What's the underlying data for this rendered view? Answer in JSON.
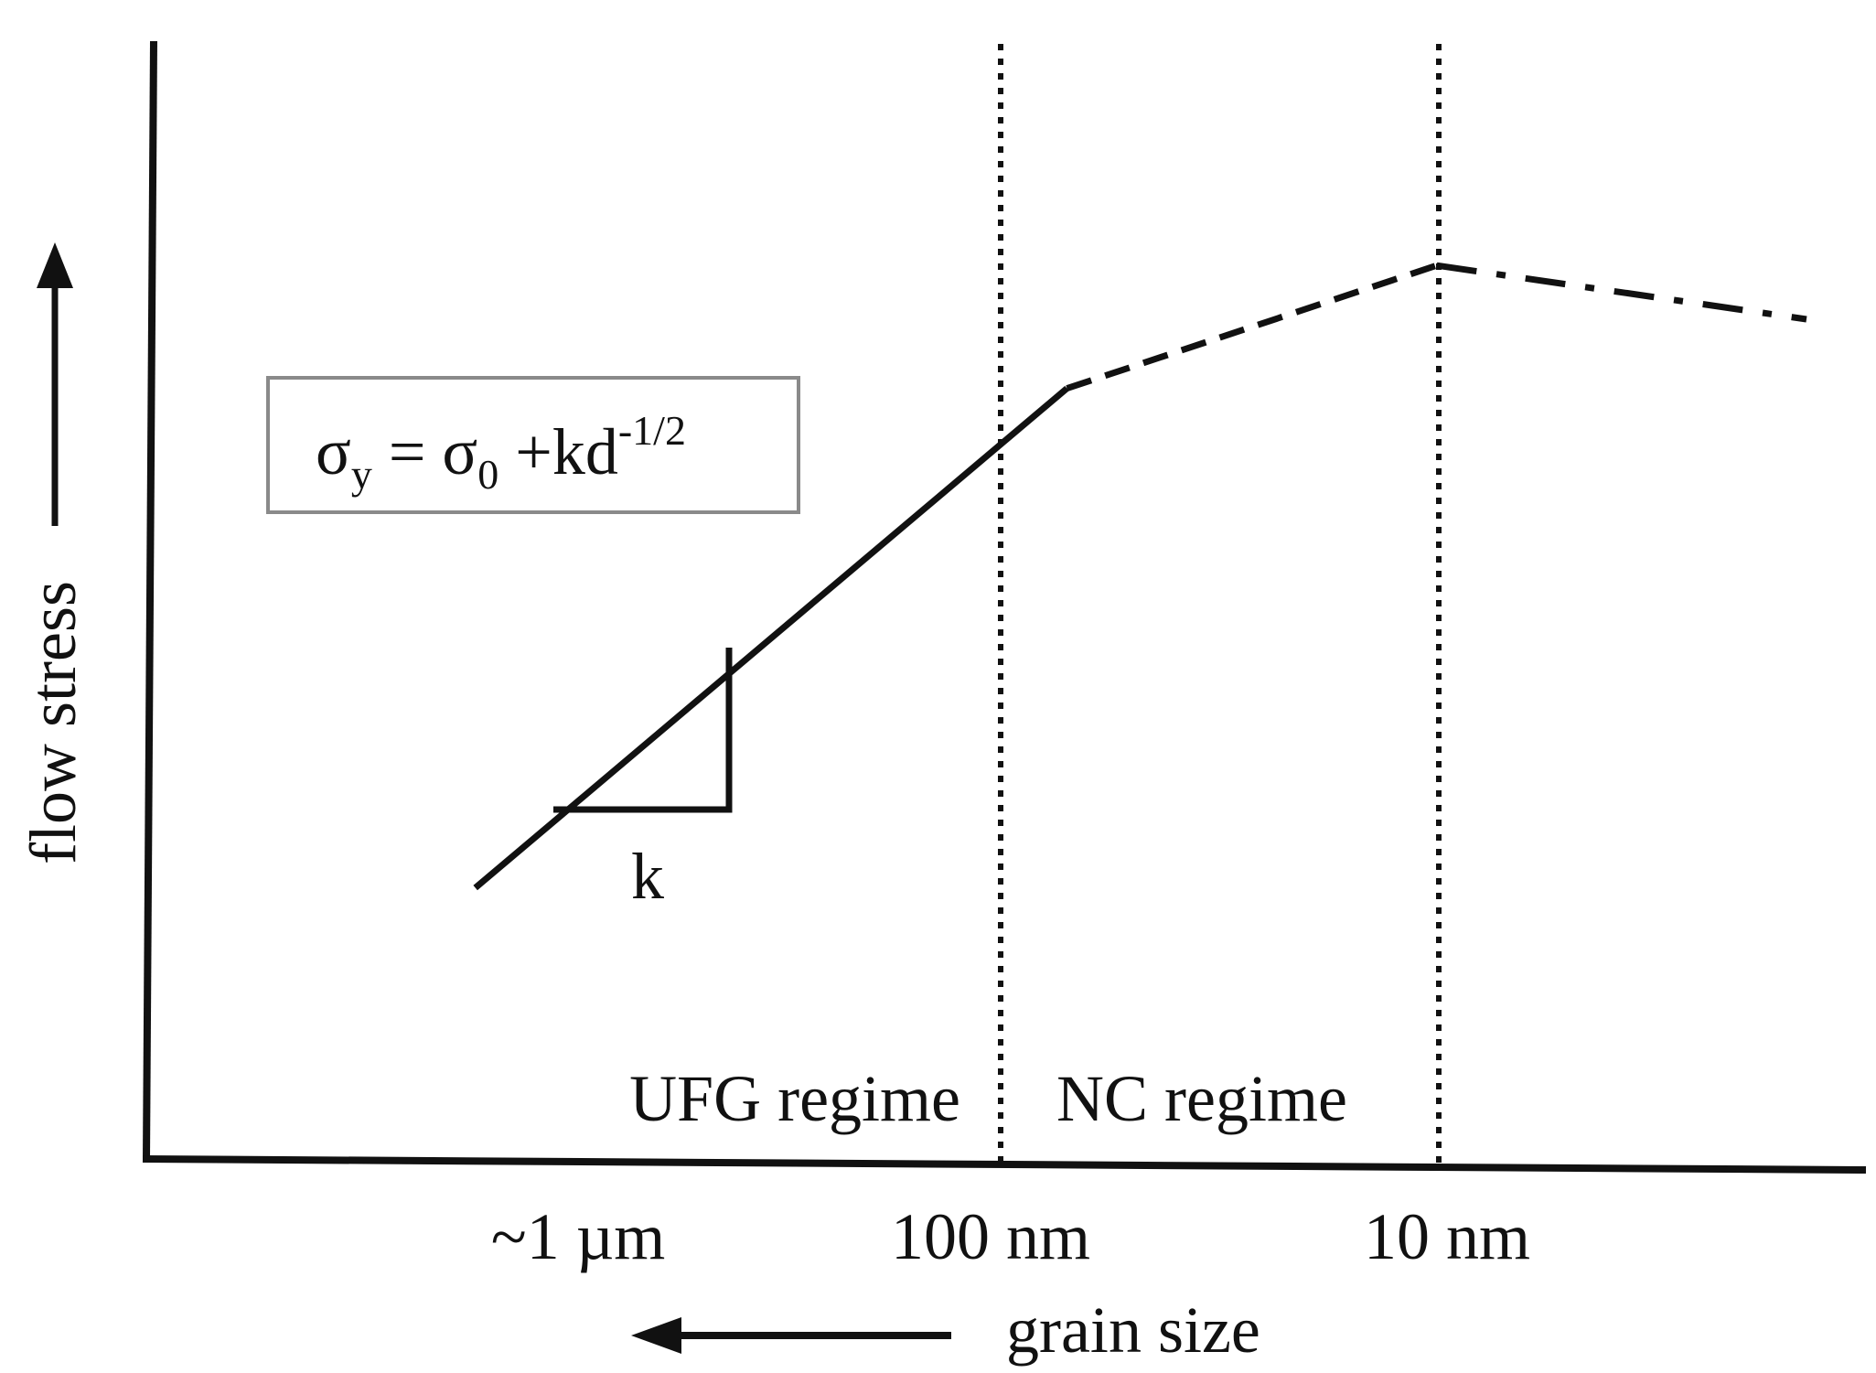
{
  "chart_data": {
    "type": "line",
    "title": "",
    "xlabel": "grain size",
    "ylabel": "flow stress",
    "x_direction": "decreasing grain size to the right",
    "x_ticks": [
      "~1 µm",
      "100 nm",
      "10 nm"
    ],
    "grid": false,
    "boundaries": [
      {
        "name": "ufg-nc-boundary",
        "at": "100 nm",
        "style": "dotted"
      },
      {
        "name": "nc-limit-boundary",
        "at": "10 nm",
        "style": "dotted"
      }
    ],
    "regions": [
      {
        "name": "ufg-regime",
        "label": "UFG regime"
      },
      {
        "name": "nc-regime",
        "label": "NC regime"
      }
    ],
    "series": [
      {
        "style": "solid",
        "points": [
          [
            0.1,
            0.16
          ],
          [
            0.5,
            0.81
          ]
        ]
      },
      {
        "style": "dashed",
        "points": [
          [
            0.5,
            0.81
          ],
          [
            0.75,
            0.97
          ]
        ]
      },
      {
        "style": "dash-dot",
        "points": [
          [
            0.75,
            0.97
          ],
          [
            1.0,
            0.9
          ]
        ]
      }
    ],
    "annotations": {
      "equation": {
        "sigma": "σ",
        "sub_y": "y",
        "equals": " = ",
        "sub_0": "0",
        "plus_kd": " +kd",
        "exponent": "-1/2"
      },
      "slope_label": "k"
    }
  }
}
